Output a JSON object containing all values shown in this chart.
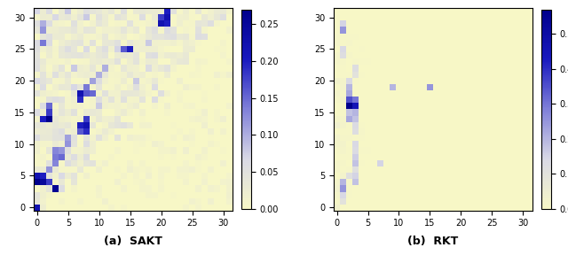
{
  "title_left": "(a)  SAKT",
  "title_right": "(b)  RKT",
  "sakt_vmax": 0.27,
  "rkt_vmax": 0.57,
  "figsize": [
    6.4,
    2.97
  ],
  "dpi": 100,
  "n": 32,
  "colormap": "Blues",
  "bg_color": "#f5f5c8"
}
